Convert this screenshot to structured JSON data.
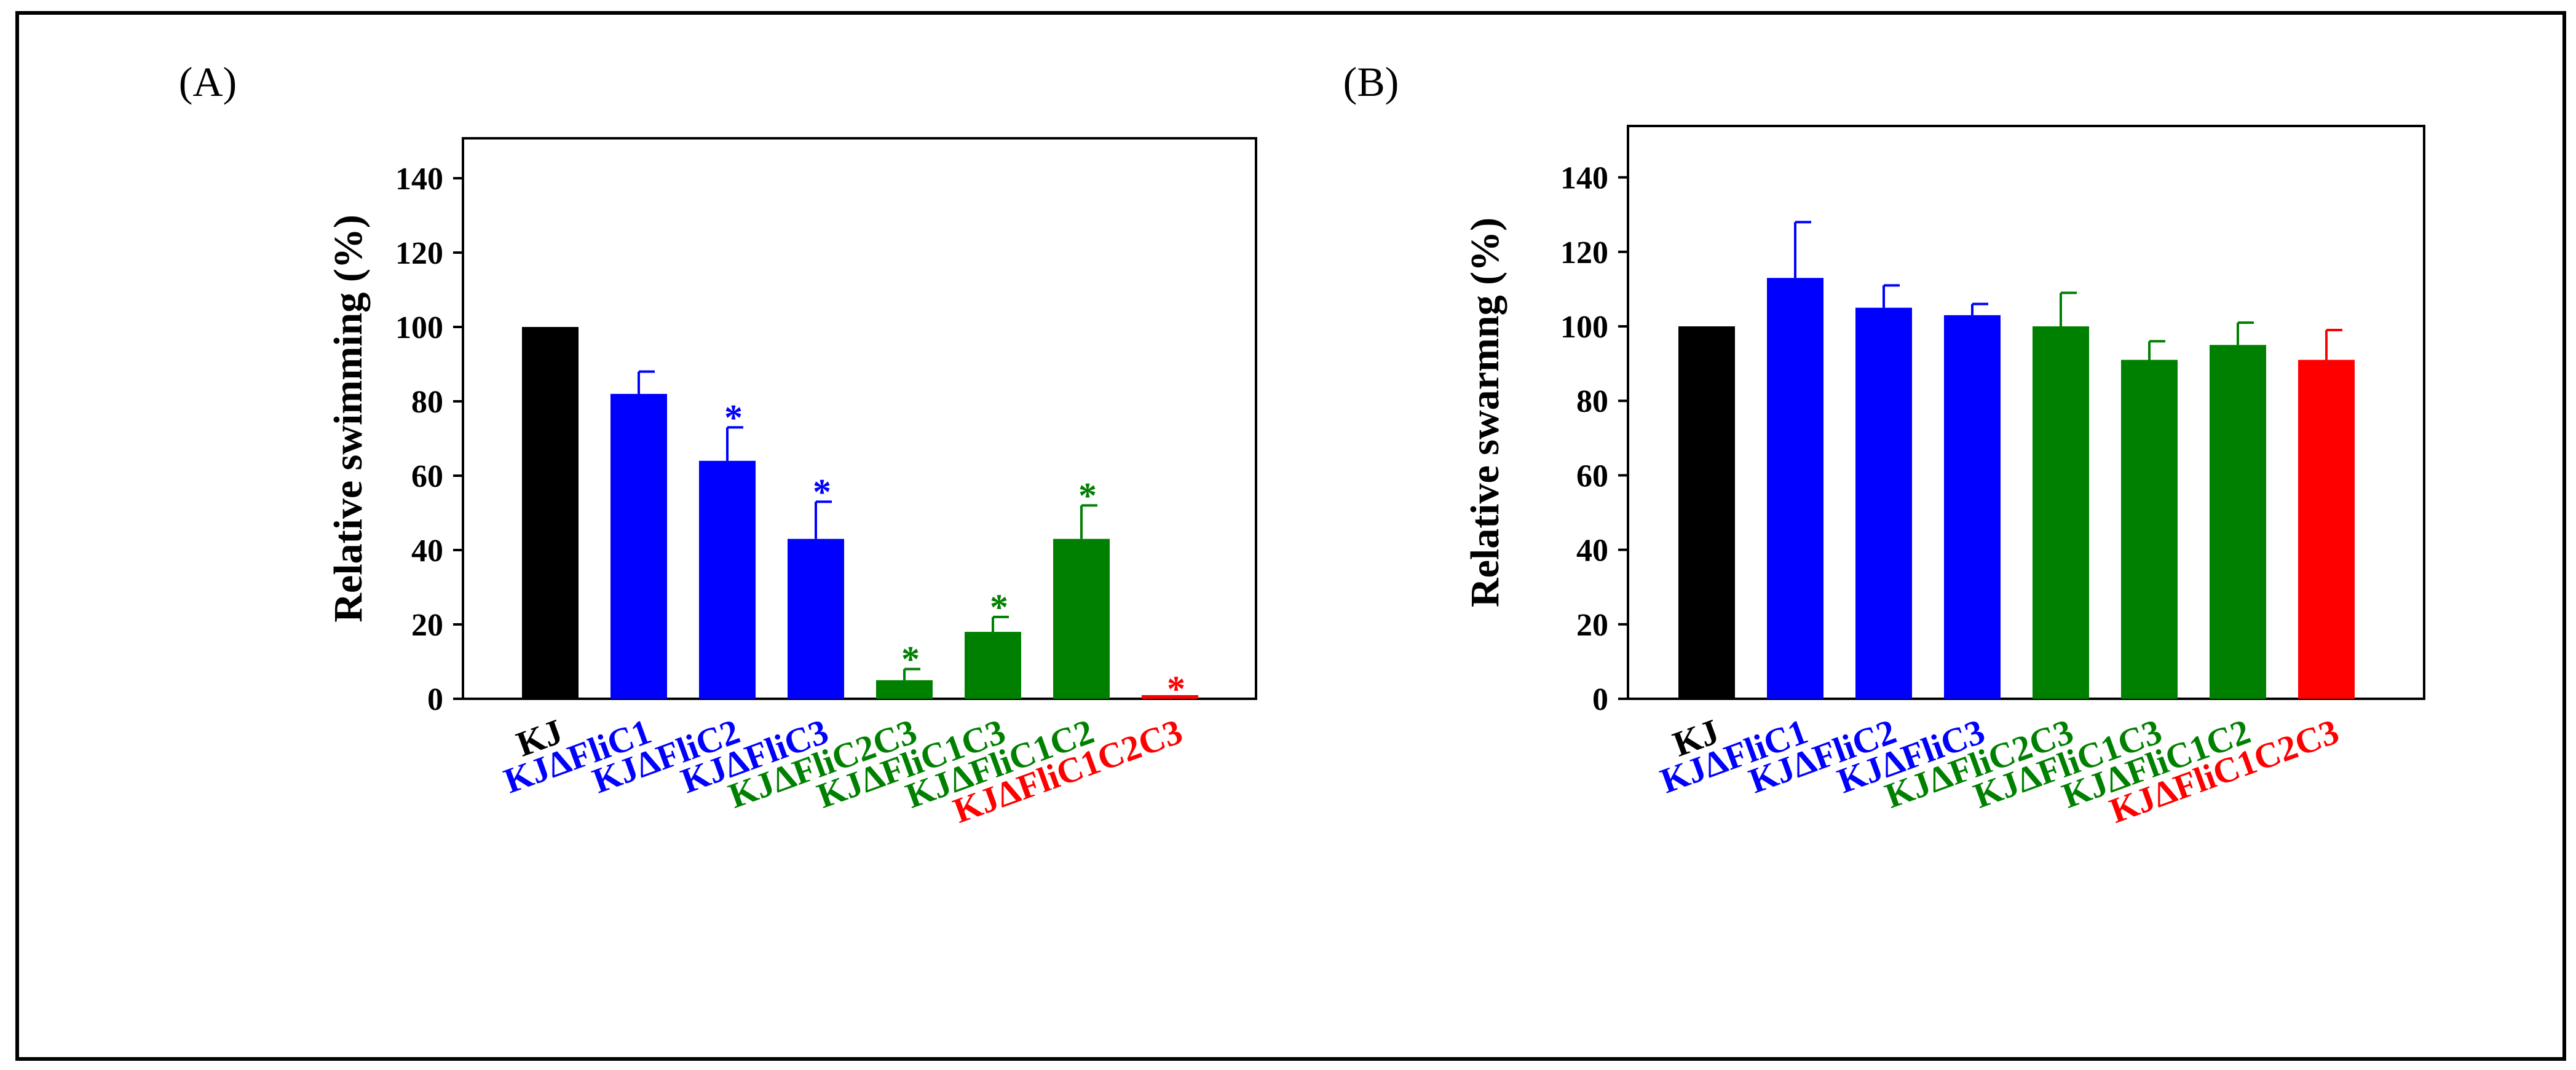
{
  "figure": {
    "border_color": "#000000"
  },
  "chart_data": [
    {
      "type": "bar",
      "panel_label": "(A)",
      "title": "",
      "xlabel": "",
      "ylabel": "Relative swimming (%)",
      "ylim": [
        0,
        150
      ],
      "yticks": [
        "0",
        "20",
        "40",
        "60",
        "80",
        "100",
        "120",
        "140"
      ],
      "categories": [
        "KJ",
        "KJΔFliC1",
        "KJΔFliC2",
        "KJΔFliC3",
        "KJΔFliC2C3",
        "KJΔFliC1C3",
        "KJΔFliC1C2",
        "KJΔFliC1C2C3"
      ],
      "values": [
        100,
        82,
        64,
        43,
        5,
        18,
        43,
        0
      ],
      "errors": [
        0,
        6,
        9,
        10,
        3,
        4,
        9,
        0
      ],
      "significance": [
        "",
        "",
        "*",
        "*",
        "*",
        "*",
        "*",
        "*"
      ],
      "colors": [
        "#000000",
        "#0000ff",
        "#0000ff",
        "#0000ff",
        "#008000",
        "#008000",
        "#008000",
        "#ff0000"
      ]
    },
    {
      "type": "bar",
      "panel_label": "(B)",
      "title": "",
      "xlabel": "",
      "ylabel": "Relative swarmng (%)",
      "ylim": [
        0,
        150
      ],
      "yticks": [
        "0",
        "20",
        "40",
        "60",
        "80",
        "100",
        "120",
        "140"
      ],
      "categories": [
        "KJ",
        "KJΔFliC1",
        "KJΔFliC2",
        "KJΔFliC3",
        "KJΔFliC2C3",
        "KJΔFliC1C3",
        "KJΔFliC1C2",
        "KJΔFliC1C2C3"
      ],
      "values": [
        100,
        113,
        105,
        103,
        100,
        91,
        95,
        91
      ],
      "errors": [
        0,
        15,
        6,
        3,
        9,
        5,
        6,
        8
      ],
      "significance": [
        "",
        "",
        "",
        "",
        "",
        "",
        "",
        ""
      ],
      "colors": [
        "#000000",
        "#0000ff",
        "#0000ff",
        "#0000ff",
        "#008000",
        "#008000",
        "#008000",
        "#ff0000"
      ]
    }
  ]
}
